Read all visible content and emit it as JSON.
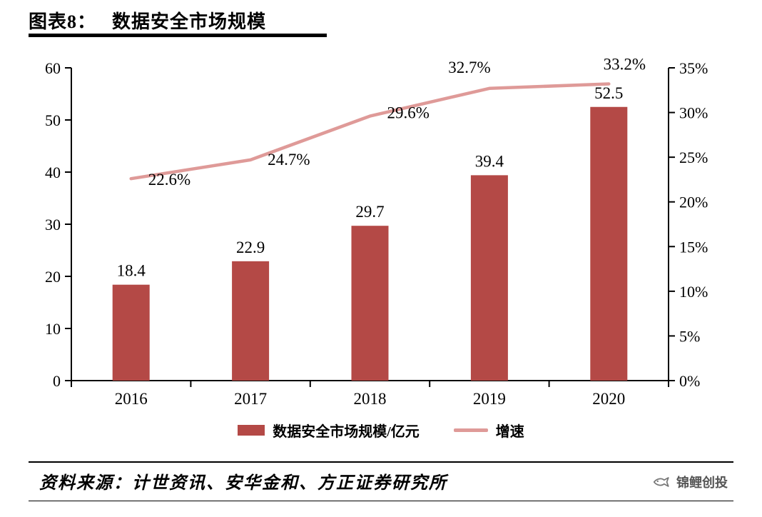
{
  "header": {
    "title_prefix": "图表8：",
    "title": "数据安全市场规模"
  },
  "chart_data": {
    "type": "bar",
    "subtype": "bar+line combo, dual axis",
    "categories": [
      "2016",
      "2017",
      "2018",
      "2019",
      "2020"
    ],
    "series": [
      {
        "name": "数据安全市场规模/亿元",
        "type": "bar",
        "axis": "left",
        "values": [
          18.4,
          22.9,
          29.7,
          39.4,
          52.5
        ]
      },
      {
        "name": "增速",
        "type": "line",
        "axis": "right",
        "values": [
          22.6,
          24.7,
          29.6,
          32.7,
          33.2
        ],
        "unit": "%"
      }
    ],
    "bar_labels": [
      "18.4",
      "22.9",
      "29.7",
      "39.4",
      "52.5"
    ],
    "line_labels": [
      "22.6%",
      "24.7%",
      "29.6%",
      "32.7%",
      "33.2%"
    ],
    "left_axis": {
      "min": 0,
      "max": 60,
      "step": 10,
      "ticks": [
        "0",
        "10",
        "20",
        "30",
        "40",
        "50",
        "60"
      ]
    },
    "right_axis": {
      "min": 0,
      "max": 35,
      "step": 5,
      "ticks": [
        "0%",
        "5%",
        "10%",
        "15%",
        "20%",
        "25%",
        "30%",
        "35%"
      ]
    },
    "grid": false,
    "legend_position": "bottom",
    "title": "数据安全市场规模"
  },
  "legend": {
    "bar_label": "数据安全市场规模/亿元",
    "line_label": "增速"
  },
  "footer": {
    "source": "资料来源：计世资讯、安华金和、方正证券研究所",
    "logo_text": "锦鲤创投"
  },
  "colors": {
    "bar": "#b44946",
    "line": "#df9a98",
    "axis": "#000000",
    "logo_text": "#555555"
  }
}
